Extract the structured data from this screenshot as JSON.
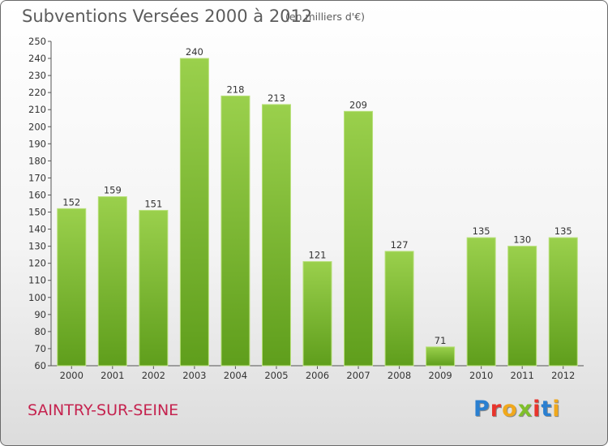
{
  "header": {
    "title": "Subventions Versées 2000 à 2012",
    "subtitle": "(en milliers d'€)"
  },
  "footer": {
    "commune": "SAINTRY-SUR-SEINE",
    "logo_text": "Proxiti"
  },
  "colors": {
    "bar_light": "#9ad04c",
    "bar_dark": "#5f9e1c",
    "commune_text": "#c5234f"
  },
  "chart_data": {
    "type": "bar",
    "title": "Subventions Versées 2000 à 2012",
    "subtitle": "(en milliers d'€)",
    "categories": [
      "2000",
      "2001",
      "2002",
      "2003",
      "2004",
      "2005",
      "2006",
      "2007",
      "2008",
      "2009",
      "2010",
      "2011",
      "2012"
    ],
    "values": [
      152,
      159,
      151,
      240,
      218,
      213,
      121,
      209,
      127,
      71,
      135,
      130,
      135
    ],
    "ylim": [
      60,
      250
    ],
    "ytick_step": 10,
    "grid": false,
    "xlabel": "",
    "ylabel": ""
  }
}
